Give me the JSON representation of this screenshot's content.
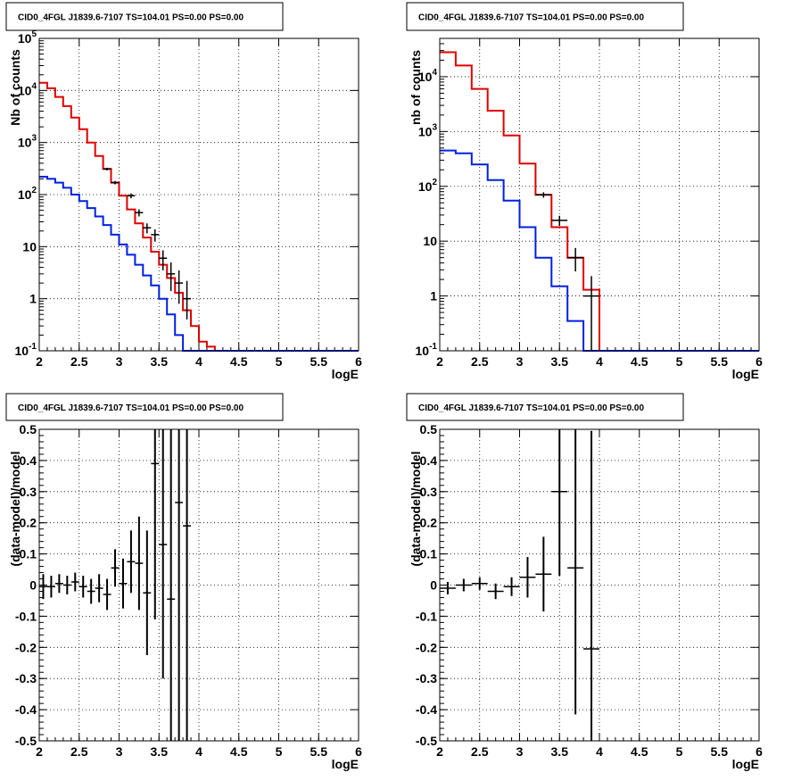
{
  "chart_data": [
    {
      "type": "line",
      "title": "CID0_4FGL J1839.6-7107 TS=104.01 PS=0.00 PS=0.00",
      "xlabel": "logE",
      "ylabel": "Nb of counts",
      "log_y": true,
      "xlim": [
        2,
        6
      ],
      "ylim": [
        0.1,
        100000
      ],
      "grid": true,
      "x_ticks": [
        "2",
        "2.5",
        "3",
        "3.5",
        "4",
        "4.5",
        "5",
        "5.5",
        "6"
      ],
      "y_ticks": [
        "10^-1",
        "1",
        "10",
        "10^2",
        "10^3",
        "10^4",
        "10^5"
      ],
      "colors": {
        "total": "#e00000",
        "source": "#0020e0",
        "data": "#000000"
      },
      "bin_edges": [
        2.0,
        2.1,
        2.2,
        2.3,
        2.4,
        2.5,
        2.6,
        2.7,
        2.8,
        2.9,
        3.0,
        3.1,
        3.2,
        3.3,
        3.4,
        3.5,
        3.6,
        3.7,
        3.8,
        3.9,
        4.0,
        4.1,
        4.2,
        4.3,
        4.4,
        4.5,
        4.6,
        4.7,
        4.8,
        4.9,
        5.0,
        5.1,
        5.2,
        5.3,
        5.4,
        5.5,
        5.6,
        5.7,
        5.8,
        5.9,
        6.0
      ],
      "series": [
        {
          "values": [
            14000,
            11000,
            7500,
            5000,
            3000,
            1800,
            1000,
            550,
            310,
            170,
            95,
            52,
            28,
            15,
            8,
            4.5,
            2.5,
            1.3,
            0.6,
            0.3,
            0.15,
            0.12,
            0.1,
            0.1,
            0.1,
            0.1,
            0.1,
            0.1,
            0.1,
            0.1,
            0.1,
            0.1,
            0.1,
            0.1,
            0.1,
            0.1,
            0.1,
            0.1,
            0.1,
            0.1
          ]
        },
        {
          "values": [
            220,
            200,
            170,
            135,
            100,
            75,
            55,
            38,
            26,
            17,
            11,
            7,
            4.5,
            2.8,
            1.8,
            1.0,
            0.5,
            0.2,
            0.1,
            0.1,
            0.1,
            0.1,
            0.1,
            0.1,
            0.1,
            0.1,
            0.1,
            0.1,
            0.1,
            0.1,
            0.1,
            0.1,
            0.1,
            0.1,
            0.1,
            0.1,
            0.1,
            0.1,
            0.1,
            0.1
          ]
        }
      ],
      "data_points": {
        "x": [
          2.85,
          2.95,
          3.15,
          3.25,
          3.35,
          3.45,
          3.55,
          3.65,
          3.75,
          3.85
        ],
        "y": [
          310,
          170,
          95,
          45,
          23,
          17,
          6,
          3,
          2,
          1
        ],
        "yerr_lo": [
          18,
          13,
          10,
          7,
          5,
          4.5,
          2.5,
          1.6,
          1.2,
          0.6
        ],
        "yerr_hi": [
          18,
          13,
          10,
          7,
          5,
          4.5,
          2.5,
          2,
          1.5,
          1.2
        ]
      }
    },
    {
      "type": "line",
      "title": "CID0_4FGL J1839.6-7107 TS=104.01 PS=0.00 PS=0.00",
      "xlabel": "logE",
      "ylabel": "nb of counts",
      "log_y": true,
      "xlim": [
        2,
        6
      ],
      "ylim": [
        0.1,
        50000
      ],
      "grid": true,
      "x_ticks": [
        "2",
        "2.5",
        "3",
        "3.5",
        "4",
        "4.5",
        "5",
        "5.5",
        "6"
      ],
      "y_ticks": [
        "10^-1",
        "1",
        "10",
        "10^2",
        "10^3",
        "10^4"
      ],
      "colors": {
        "total": "#e00000",
        "source": "#0020e0",
        "data": "#000000"
      },
      "bin_edges": [
        2.0,
        2.2,
        2.4,
        2.6,
        2.8,
        3.0,
        3.2,
        3.4,
        3.6,
        3.8,
        4.0,
        4.2,
        4.4,
        4.6,
        4.8,
        5.0,
        5.2,
        5.4,
        5.6,
        5.8,
        6.0
      ],
      "series": [
        {
          "values": [
            28000,
            16000,
            6000,
            2400,
            850,
            260,
            70,
            18,
            5,
            1.3,
            0.1,
            0.1,
            0.1,
            0.1,
            0.1,
            0.1,
            0.1,
            0.1,
            0.1,
            0.1
          ]
        },
        {
          "values": [
            450,
            400,
            250,
            130,
            55,
            18,
            5,
            1.5,
            0.35,
            0.1,
            0.1,
            0.1,
            0.1,
            0.1,
            0.1,
            0.1,
            0.1,
            0.1,
            0.1,
            0.1
          ]
        }
      ],
      "data_points": {
        "x": [
          3.3,
          3.5,
          3.7,
          3.9
        ],
        "y": [
          70,
          24,
          5,
          1
        ],
        "yerr_lo": [
          8,
          5,
          2.2,
          0.9
        ],
        "yerr_hi": [
          8,
          5,
          2.5,
          1.3
        ]
      }
    },
    {
      "type": "scatter",
      "title": "CID0_4FGL J1839.6-7107 TS=104.01 PS=0.00 PS=0.00",
      "xlabel": "logE",
      "ylabel": "(data-model)/model",
      "xlim": [
        2,
        6
      ],
      "ylim": [
        -0.5,
        0.5
      ],
      "grid": true,
      "x_ticks": [
        "2",
        "2.5",
        "3",
        "3.5",
        "4",
        "4.5",
        "5",
        "5.5",
        "6"
      ],
      "y_ticks": [
        "-0.5",
        "-0.4",
        "-0.3",
        "-0.2",
        "-0.1",
        "0",
        "0.1",
        "0.2",
        "0.3",
        "0.4",
        "0.5"
      ],
      "x_half_width": 0.05,
      "x": [
        2.05,
        2.15,
        2.25,
        2.35,
        2.45,
        2.55,
        2.65,
        2.75,
        2.85,
        2.95,
        3.05,
        3.15,
        3.25,
        3.35,
        3.45,
        3.55,
        3.65,
        3.75,
        3.85
      ],
      "y": [
        -0.005,
        -0.005,
        0.005,
        0.0,
        0.01,
        -0.005,
        -0.02,
        -0.01,
        -0.03,
        0.055,
        0.005,
        0.075,
        0.07,
        -0.025,
        0.39,
        0.13,
        -0.045,
        0.265,
        0.19
      ],
      "yerr": [
        0.04,
        0.035,
        0.03,
        0.03,
        0.03,
        0.035,
        0.04,
        0.045,
        0.05,
        0.06,
        0.08,
        0.1,
        0.15,
        0.2,
        0.5,
        0.43,
        0.6,
        0.8,
        0.9
      ]
    },
    {
      "type": "scatter",
      "title": "CID0_4FGL J1839.6-7107 TS=104.01 PS=0.00 PS=0.00",
      "xlabel": "logE",
      "ylabel": "(data-model)/model",
      "xlim": [
        2,
        6
      ],
      "ylim": [
        -0.5,
        0.5
      ],
      "grid": true,
      "x_ticks": [
        "2",
        "2.5",
        "3",
        "3.5",
        "4",
        "4.5",
        "5",
        "5.5",
        "6"
      ],
      "y_ticks": [
        "-0.5",
        "-0.4",
        "-0.3",
        "-0.2",
        "-0.1",
        "0",
        "0.1",
        "0.2",
        "0.3",
        "0.4",
        "0.5"
      ],
      "x_half_width": 0.1,
      "x": [
        2.1,
        2.3,
        2.5,
        2.7,
        2.9,
        3.1,
        3.3,
        3.5,
        3.7,
        3.9
      ],
      "y": [
        -0.01,
        0.0,
        0.005,
        -0.02,
        -0.005,
        0.025,
        0.035,
        0.3,
        0.055,
        -0.205
      ],
      "yerr": [
        0.02,
        0.02,
        0.02,
        0.025,
        0.03,
        0.065,
        0.12,
        0.27,
        0.47,
        0.7
      ]
    }
  ]
}
